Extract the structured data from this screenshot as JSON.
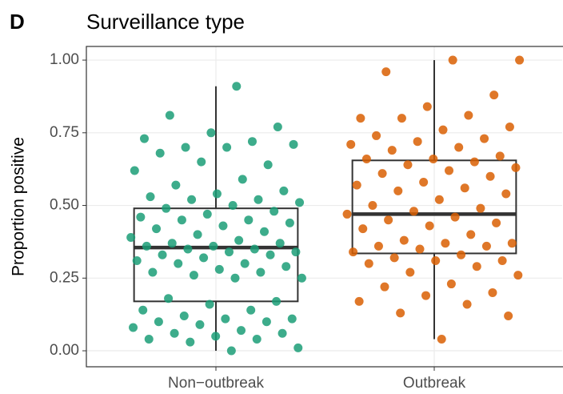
{
  "chart_data": {
    "type": "box",
    "panel_label": "D",
    "title": "Surveillance type",
    "ylabel": "Proportion positive",
    "categories": [
      "Non−outbreak",
      "Outbreak"
    ],
    "colors": [
      "#1b9e77",
      "#d95f02"
    ],
    "ylim": [
      -0.055,
      1.047
    ],
    "yticks": [
      {
        "value": 0,
        "label": "0.00"
      },
      {
        "value": 0.25,
        "label": "0.25"
      },
      {
        "value": 0.5,
        "label": "0.50"
      },
      {
        "value": 0.75,
        "label": "0.75"
      },
      {
        "value": 1,
        "label": "1.00"
      }
    ],
    "grid": true,
    "boxes": [
      {
        "whislo": 0.0,
        "q1": 0.17,
        "med": 0.355,
        "q3": 0.49,
        "whishi": 0.91
      },
      {
        "whislo": 0.04,
        "q1": 0.335,
        "med": 0.47,
        "q3": 0.655,
        "whishi": 1.0
      }
    ],
    "points": [
      [
        0.91,
        0.81,
        0.77,
        0.75,
        0.73,
        0.72,
        0.7,
        0.71,
        0.7,
        0.68,
        0.64,
        0.65,
        0.62,
        0.59,
        0.57,
        0.55,
        0.54,
        0.53,
        0.52,
        0.52,
        0.51,
        0.5,
        0.49,
        0.48,
        0.47,
        0.46,
        0.45,
        0.45,
        0.44,
        0.43,
        0.42,
        0.41,
        0.4,
        0.39,
        0.38,
        0.37,
        0.37,
        0.36,
        0.36,
        0.35,
        0.35,
        0.34,
        0.34,
        0.33,
        0.33,
        0.32,
        0.31,
        0.3,
        0.3,
        0.29,
        0.28,
        0.27,
        0.27,
        0.26,
        0.25,
        0.25,
        0.18,
        0.17,
        0.16,
        0.14,
        0.14,
        0.12,
        0.11,
        0.11,
        0.1,
        0.1,
        0.09,
        0.08,
        0.07,
        0.06,
        0.06,
        0.05,
        0.04,
        0.04,
        0.03,
        0.01,
        0.0
      ],
      [
        1.0,
        1.0,
        0.96,
        0.88,
        0.84,
        0.8,
        0.81,
        0.8,
        0.77,
        0.76,
        0.74,
        0.73,
        0.72,
        0.71,
        0.7,
        0.69,
        0.67,
        0.66,
        0.66,
        0.65,
        0.64,
        0.63,
        0.62,
        0.61,
        0.6,
        0.58,
        0.57,
        0.56,
        0.55,
        0.54,
        0.52,
        0.5,
        0.49,
        0.48,
        0.47,
        0.46,
        0.45,
        0.44,
        0.43,
        0.42,
        0.4,
        0.38,
        0.37,
        0.37,
        0.36,
        0.36,
        0.35,
        0.34,
        0.33,
        0.32,
        0.31,
        0.31,
        0.3,
        0.29,
        0.27,
        0.26,
        0.23,
        0.22,
        0.2,
        0.19,
        0.17,
        0.16,
        0.13,
        0.12,
        0.04
      ]
    ]
  }
}
